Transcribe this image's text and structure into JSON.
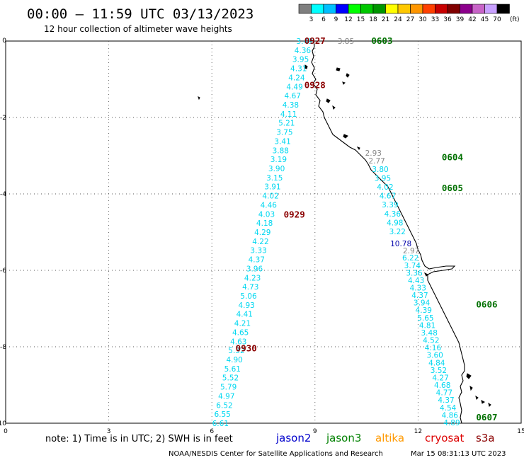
{
  "title": "00:00 – 11:59 UTC 03/13/2023",
  "subtitle": "12 hour collection of altimeter wave heights",
  "colorbar": {
    "labels": [
      "3",
      "6",
      "9",
      "12",
      "15",
      "18",
      "21",
      "24",
      "27",
      "30",
      "33",
      "36",
      "39",
      "42",
      "45",
      "70"
    ],
    "unit": "(ft)",
    "colors": [
      "#7f7f7f",
      "#00ffff",
      "#00bfff",
      "#0000ff",
      "#00ff00",
      "#00c800",
      "#009600",
      "#ffff00",
      "#ffc800",
      "#ff9600",
      "#ff4000",
      "#c80000",
      "#800000",
      "#8c008c",
      "#c864c8",
      "#c8a0ff",
      "#000000"
    ]
  },
  "axes": {
    "x_ticks": [
      "0",
      "3",
      "6",
      "9",
      "12",
      "15"
    ],
    "y_ticks": [
      "0",
      "-2",
      "-4",
      "-6",
      "-8",
      "-10"
    ]
  },
  "colors": {
    "low": "#00d7f0",
    "gray": "#888888",
    "mid": "#0000aa",
    "pass_red": "#8b0000",
    "pass_green": "#007000"
  },
  "passes": [
    {
      "label": "0927",
      "color": "#8b0000",
      "x": 9.0,
      "y": 0.0
    },
    {
      "label": "0603",
      "color": "#007000",
      "x": 10.95,
      "y": 0.0
    },
    {
      "label": "0928",
      "color": "#8b0000",
      "x": 9.0,
      "y": -1.16
    },
    {
      "label": "0604",
      "color": "#007000",
      "x": 13.0,
      "y": -3.05
    },
    {
      "label": "0605",
      "color": "#007000",
      "x": 13.0,
      "y": -3.85
    },
    {
      "label": "0929",
      "color": "#8b0000",
      "x": 8.4,
      "y": -4.55
    },
    {
      "label": "0930",
      "color": "#8b0000",
      "x": 7.0,
      "y": -8.05
    },
    {
      "label": "0606",
      "color": "#007000",
      "x": 14.0,
      "y": -6.9
    },
    {
      "label": "0607",
      "color": "#007000",
      "x": 14.0,
      "y": -9.85
    }
  ],
  "track_west": {
    "color": "#00d7f0",
    "values": [
      "3.49",
      "4.36",
      "3.95",
      "4.31",
      "4.24",
      "4.49",
      "4.67",
      "4.38",
      "4.11",
      "5.21",
      "3.75",
      "3.41",
      "3.88",
      "3.19",
      "3.90",
      "3.15",
      "3.91",
      "4.02",
      "4.46",
      "4.03",
      "4.18",
      "4.29",
      "4.22",
      "3.33",
      "4.37",
      "3.96",
      "4.23",
      "4.73",
      "5.06",
      "4.93",
      "4.41",
      "4.21",
      "4.65",
      "4.63",
      "5.32",
      "4.90",
      "5.61",
      "5.52",
      "5.79",
      "4.97",
      "6.52",
      "6.55",
      "6.61"
    ]
  },
  "track_east_gray": [
    {
      "value": "3.85",
      "x": 9.9,
      "y": 0.0
    },
    {
      "value": "2.93",
      "x": 10.7,
      "y": -2.93
    },
    {
      "value": "2.77",
      "x": 10.8,
      "y": -3.13
    }
  ],
  "track_east_cyan_a": [
    "3.80",
    "3.95",
    "4.02",
    "4.67",
    "3.39",
    "4.36",
    "4.98",
    "3.22"
  ],
  "track_east_mid": {
    "value": "10.78",
    "x": 11.5,
    "y": -5.3
  },
  "track_east_gray2": {
    "value": "2.97",
    "x": 11.8,
    "y": -5.48
  },
  "track_east_cyan_b": [
    "6.22",
    "3.74",
    "3.36",
    "4.43",
    "4.33",
    "4.37",
    "3.94",
    "4.39",
    "5.65",
    "4.81",
    "3.48",
    "4.52",
    "4.16",
    "3.60",
    "4.84",
    "3.52",
    "4.27",
    "4.68",
    "4.77",
    "4.37",
    "4.54",
    "4.86",
    "4.89"
  ],
  "note": "note: 1) Time is in UTC; 2) SWH is in feet",
  "satellites": [
    {
      "name": "jason2",
      "color": "#0000cc"
    },
    {
      "name": "jason3",
      "color": "#008000"
    },
    {
      "name": "altika",
      "color": "#ff9900"
    },
    {
      "name": "cryosat",
      "color": "#dd0000"
    },
    {
      "name": "s3a",
      "color": "#8b0000"
    }
  ],
  "footer_left": "NOAA/NESDIS Center for Satellite Applications and Research",
  "footer_right": "Mar 15 08:31:13 UTC 2023"
}
